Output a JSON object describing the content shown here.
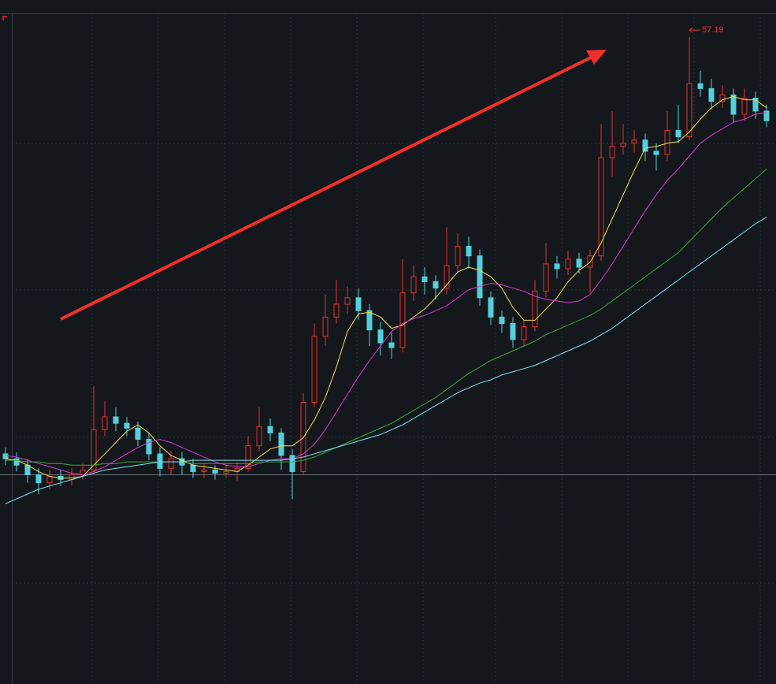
{
  "chart_data": {
    "type": "candlestick",
    "open": [
      31.3,
      31.0,
      30.6,
      30.0,
      29.5,
      29.9,
      29.7,
      30.0,
      30.3,
      32.8,
      33.6,
      33.2,
      32.9,
      32.2,
      31.3,
      30.4,
      31.0,
      30.6,
      30.2,
      30.3,
      30.1,
      30.2,
      30.4,
      31.8,
      33.0,
      32.6,
      31.2,
      30.2,
      34.5,
      38.6,
      39.8,
      40.6,
      41.0,
      40.2,
      39.0,
      38.2,
      37.9,
      41.3,
      42.3,
      42.0,
      41.6,
      43.0,
      44.2,
      43.6,
      41.0,
      39.8,
      39.4,
      38.4,
      39.2,
      41.4,
      43.1,
      42.8,
      43.4,
      42.9,
      43.6,
      49.7,
      50.4,
      50.6,
      50.8,
      50.1,
      49.9,
      51.4,
      51.0,
      54.3,
      54.0,
      53.2,
      53.6,
      52.4,
      53.4,
      52.6
    ],
    "high": [
      31.7,
      31.4,
      31.0,
      30.4,
      30.3,
      30.3,
      30.4,
      30.7,
      35.5,
      34.6,
      34.2,
      33.6,
      33.3,
      32.6,
      31.7,
      31.5,
      31.4,
      31.0,
      30.7,
      30.6,
      30.6,
      30.8,
      32.4,
      34.2,
      33.5,
      32.9,
      31.6,
      35.1,
      39.4,
      41.2,
      42.1,
      41.7,
      41.6,
      40.6,
      39.5,
      38.9,
      43.4,
      43.0,
      42.9,
      42.4,
      45.4,
      45.0,
      44.8,
      44.0,
      41.4,
      40.2,
      39.8,
      39.6,
      42.1,
      44.4,
      43.6,
      43.9,
      43.8,
      44.0,
      51.8,
      52.6,
      51.8,
      51.4,
      51.2,
      50.6,
      52.6,
      53.0,
      57.19,
      55.1,
      54.6,
      54.2,
      54.0,
      54.0,
      53.8,
      53.0
    ],
    "low": [
      30.6,
      30.2,
      29.5,
      28.8,
      29.1,
      29.3,
      29.3,
      29.7,
      30.0,
      32.4,
      32.7,
      32.4,
      31.8,
      30.9,
      29.9,
      30.0,
      30.0,
      29.8,
      29.8,
      29.7,
      29.8,
      29.6,
      30.2,
      31.5,
      32.1,
      30.3,
      28.5,
      30.0,
      34.2,
      38.0,
      39.4,
      40.0,
      39.6,
      38.0,
      37.4,
      37.2,
      37.6,
      40.8,
      41.2,
      40.9,
      41.2,
      42.6,
      42.8,
      40.5,
      39.3,
      38.8,
      37.9,
      38.0,
      38.9,
      41.0,
      42.2,
      42.4,
      42.5,
      41.3,
      43.3,
      48.5,
      49.9,
      50.0,
      49.5,
      48.9,
      49.5,
      50.6,
      50.8,
      53.5,
      52.7,
      52.8,
      51.9,
      52.0,
      52.1,
      51.6
    ],
    "close": [
      31.0,
      30.6,
      30.0,
      29.5,
      29.9,
      29.7,
      30.0,
      30.3,
      32.8,
      33.6,
      33.2,
      32.9,
      32.2,
      31.3,
      30.4,
      31.0,
      30.6,
      30.2,
      30.3,
      30.1,
      30.2,
      30.4,
      31.8,
      33.0,
      32.6,
      31.2,
      30.2,
      34.5,
      38.6,
      39.8,
      40.6,
      41.0,
      40.2,
      39.0,
      38.2,
      37.9,
      41.3,
      42.3,
      42.0,
      41.6,
      43.0,
      44.2,
      43.6,
      41.0,
      39.8,
      39.4,
      38.4,
      39.2,
      41.4,
      43.1,
      42.8,
      43.4,
      42.9,
      43.6,
      49.7,
      50.4,
      50.6,
      50.8,
      50.1,
      49.9,
      51.4,
      51.0,
      54.3,
      54.0,
      53.2,
      53.6,
      52.4,
      53.4,
      52.6,
      52.0
    ],
    "up_color": "#e8322c",
    "down_color": "#54d0dc",
    "series": [
      {
        "color": "#f2e14a",
        "values": [
          31.0,
          30.9,
          30.6,
          30.2,
          29.9,
          29.8,
          29.8,
          29.9,
          30.6,
          31.3,
          32.0,
          32.7,
          33.1,
          32.6,
          31.8,
          31.2,
          30.9,
          30.6,
          30.5,
          30.4,
          30.3,
          30.2,
          30.6,
          31.1,
          31.6,
          31.8,
          31.8,
          32.3,
          33.4,
          34.8,
          36.7,
          38.9,
          40.0,
          40.1,
          39.8,
          39.1,
          39.3,
          39.8,
          40.3,
          41.0,
          41.8,
          42.6,
          42.9,
          42.7,
          42.3,
          41.6,
          40.4,
          39.6,
          39.6,
          40.3,
          41.0,
          42.0,
          42.7,
          43.2,
          44.4,
          45.9,
          47.4,
          48.9,
          50.3,
          50.4,
          50.6,
          50.7,
          51.3,
          52.1,
          52.8,
          53.3,
          53.5,
          53.3,
          53.3,
          52.8
        ]
      },
      {
        "color": "#d838d0",
        "values": [
          31.2,
          31.1,
          30.9,
          30.7,
          30.5,
          30.3,
          30.1,
          30.0,
          30.2,
          30.5,
          30.9,
          31.3,
          31.7,
          32.0,
          32.2,
          32.0,
          31.7,
          31.4,
          31.1,
          30.8,
          30.6,
          30.5,
          30.5,
          30.7,
          30.9,
          31.0,
          31.0,
          31.3,
          31.9,
          32.8,
          33.9,
          35.0,
          36.1,
          37.1,
          38.0,
          38.9,
          39.4,
          39.7,
          39.9,
          40.2,
          40.5,
          41.0,
          41.5,
          41.7,
          41.9,
          41.8,
          41.6,
          41.4,
          41.1,
          40.9,
          40.8,
          40.7,
          40.8,
          41.2,
          42.1,
          43.1,
          44.2,
          45.3,
          46.4,
          47.4,
          48.3,
          49.0,
          49.8,
          50.6,
          51.1,
          51.5,
          51.9,
          52.1,
          52.4,
          52.5
        ]
      },
      {
        "color": "#3aa83a",
        "values": [
          30.9,
          30.9,
          30.8,
          30.8,
          30.7,
          30.7,
          30.6,
          30.6,
          30.6,
          30.7,
          30.7,
          30.8,
          30.8,
          30.8,
          30.8,
          30.8,
          30.8,
          30.7,
          30.7,
          30.7,
          30.7,
          30.7,
          30.7,
          30.8,
          30.8,
          30.8,
          30.8,
          30.9,
          31.1,
          31.4,
          31.7,
          32.0,
          32.3,
          32.6,
          32.9,
          33.2,
          33.6,
          34.0,
          34.4,
          34.8,
          35.3,
          35.8,
          36.3,
          36.7,
          37.1,
          37.4,
          37.7,
          38.0,
          38.3,
          38.7,
          39.0,
          39.3,
          39.6,
          39.9,
          40.3,
          40.8,
          41.3,
          41.8,
          42.3,
          42.8,
          43.3,
          43.8,
          44.5,
          45.2,
          45.9,
          46.6,
          47.2,
          47.8,
          48.4,
          49.0
        ]
      },
      {
        "color": "#7fe3ee",
        "values": [
          28.2,
          28.5,
          28.8,
          29.1,
          29.3,
          29.5,
          29.7,
          29.9,
          30.1,
          30.3,
          30.4,
          30.5,
          30.6,
          30.7,
          30.8,
          30.8,
          30.8,
          30.9,
          30.9,
          30.9,
          30.9,
          30.9,
          30.9,
          30.9,
          30.9,
          30.9,
          31.0,
          31.1,
          31.3,
          31.5,
          31.7,
          31.9,
          32.1,
          32.3,
          32.5,
          32.8,
          33.1,
          33.5,
          33.9,
          34.3,
          34.7,
          35.1,
          35.4,
          35.7,
          35.9,
          36.2,
          36.4,
          36.6,
          36.8,
          37.1,
          37.4,
          37.7,
          38.0,
          38.3,
          38.7,
          39.1,
          39.6,
          40.1,
          40.6,
          41.1,
          41.6,
          42.1,
          42.6,
          43.1,
          43.6,
          44.1,
          44.6,
          45.1,
          45.6,
          46.0
        ]
      }
    ],
    "ylim": [
      17,
      59.5
    ],
    "ref_line": 30,
    "annotation_color": "#e8322c"
  }
}
